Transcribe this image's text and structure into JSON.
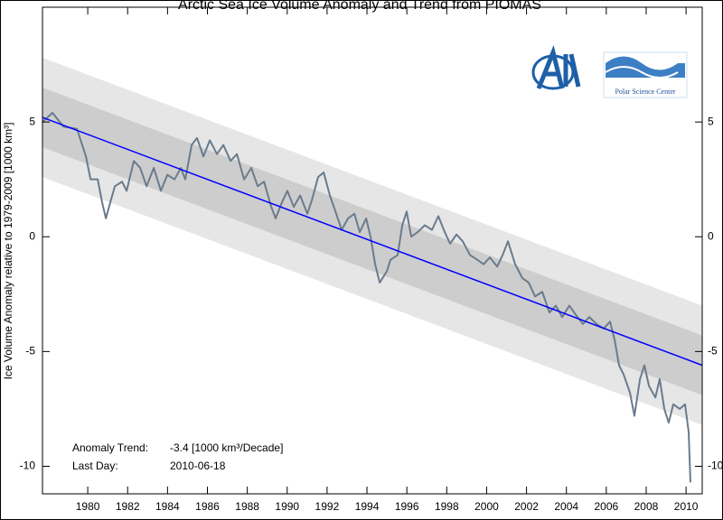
{
  "chart_data": {
    "type": "line",
    "title": "Arctic Sea Ice Volume Anomaly and Trend from PIOMAS",
    "ylabel": "Ice Volume Anomaly relative to 1979-2009 [1000 km³]",
    "annotations": [
      {
        "label": "Anomaly Trend:",
        "text": "-3.4 [1000 km³/Decade]"
      },
      {
        "label": "Last Day:",
        "text": "2010-06-18"
      }
    ],
    "logo_text": "Polar Science Center",
    "xlim": [
      1977.73,
      2010.81
    ],
    "xticks": [
      1980,
      1982,
      1984,
      1986,
      1988,
      1990,
      1992,
      1994,
      1996,
      1998,
      2000,
      2002,
      2004,
      2006,
      2008,
      2010
    ],
    "ylim": [
      -11.2,
      10
    ],
    "yticks": [
      -10,
      -5,
      0,
      5
    ],
    "right_axis_labels": true,
    "trend": {
      "color": "#0000ff",
      "x": [
        1977.73,
        2010.81
      ],
      "values": [
        5.2,
        -5.6
      ]
    },
    "bands": [
      {
        "color": "#e6e6e6",
        "upper": [
          7.8,
          -3.0
        ],
        "lower": [
          2.6,
          -8.2
        ]
      },
      {
        "color": "#cdcdcd",
        "upper": [
          6.5,
          -4.3
        ],
        "lower": [
          3.9,
          -6.9
        ]
      }
    ],
    "series": [
      {
        "color": "#6a7b8c",
        "x": [
          1977.73,
          1978.23,
          1978.78,
          1979.46,
          1979.91,
          1980.14,
          1980.5,
          1980.72,
          1980.91,
          1981.13,
          1981.36,
          1981.72,
          1981.95,
          1982.31,
          1982.63,
          1982.95,
          1983.31,
          1983.67,
          1983.99,
          1984.35,
          1984.67,
          1984.89,
          1985.21,
          1985.48,
          1985.8,
          1986.12,
          1986.48,
          1986.8,
          1987.16,
          1987.48,
          1987.84,
          1988.2,
          1988.52,
          1988.84,
          1989.2,
          1989.42,
          1989.74,
          1990.01,
          1990.33,
          1990.65,
          1991.01,
          1991.24,
          1991.55,
          1991.83,
          1992.14,
          1992.46,
          1992.73,
          1993.05,
          1993.37,
          1993.64,
          1993.96,
          1994.18,
          1994.41,
          1994.64,
          1995.0,
          1995.18,
          1995.54,
          1995.77,
          1995.99,
          1996.22,
          1996.54,
          1996.9,
          1997.26,
          1997.58,
          1997.9,
          1998.17,
          1998.49,
          1998.8,
          1999.17,
          1999.53,
          1999.85,
          2000.16,
          2000.53,
          2000.8,
          2001.07,
          2001.43,
          2001.79,
          2002.11,
          2002.43,
          2002.79,
          2003.15,
          2003.47,
          2003.79,
          2004.15,
          2004.47,
          2004.83,
          2005.15,
          2005.51,
          2005.87,
          2006.19,
          2006.42,
          2006.64,
          2006.87,
          2007.19,
          2007.41,
          2007.69,
          2007.91,
          2008.14,
          2008.46,
          2008.68,
          2008.91,
          2009.13,
          2009.36,
          2009.68,
          2009.95,
          2010.13,
          2010.22
        ],
        "values": [
          5.0,
          5.4,
          4.8,
          4.7,
          3.5,
          2.5,
          2.5,
          1.5,
          0.8,
          1.5,
          2.2,
          2.4,
          2.0,
          3.3,
          3.0,
          2.2,
          3.0,
          2.0,
          2.7,
          2.5,
          3.0,
          2.5,
          4.0,
          4.3,
          3.5,
          4.2,
          3.6,
          4.0,
          3.3,
          3.6,
          2.5,
          3.0,
          2.2,
          2.4,
          1.3,
          0.8,
          1.5,
          2.0,
          1.3,
          1.8,
          1.0,
          1.6,
          2.6,
          2.8,
          1.8,
          1.0,
          0.3,
          0.8,
          1.0,
          0.2,
          0.8,
          0.0,
          -1.2,
          -2.0,
          -1.5,
          -1.0,
          -0.8,
          0.5,
          1.1,
          0.0,
          0.2,
          0.5,
          0.3,
          0.9,
          0.2,
          -0.3,
          0.1,
          -0.2,
          -0.8,
          -1.0,
          -1.2,
          -0.9,
          -1.3,
          -0.8,
          -0.2,
          -1.2,
          -1.8,
          -2.0,
          -2.6,
          -2.4,
          -3.3,
          -3.0,
          -3.5,
          -3.0,
          -3.4,
          -3.8,
          -3.5,
          -3.8,
          -4.0,
          -3.7,
          -4.5,
          -5.6,
          -6.0,
          -6.8,
          -7.8,
          -6.2,
          -5.6,
          -6.5,
          -7.0,
          -6.2,
          -7.5,
          -8.1,
          -7.3,
          -7.5,
          -7.3,
          -8.5,
          -10.7
        ]
      }
    ]
  }
}
